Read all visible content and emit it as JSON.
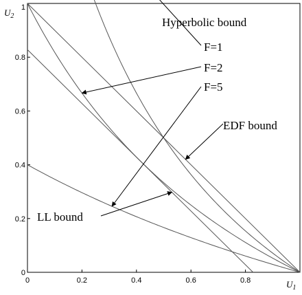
{
  "chart_data": {
    "type": "line",
    "title": "",
    "xlabel": "U",
    "xlabel_sub": "1",
    "ylabel": "U",
    "ylabel_sub": "2",
    "xlim": [
      0,
      1
    ],
    "ylim": [
      0,
      1
    ],
    "x_ticks": [
      "0",
      "0.2",
      "0.4",
      "0.6",
      "0.8"
    ],
    "y_ticks": [
      "0",
      "0.2",
      "0.4",
      "0.6",
      "0.8",
      "1"
    ],
    "grid": false,
    "series": [
      {
        "name": "EDF bound",
        "kind": "edf",
        "x": [
          0,
          1
        ],
        "y": [
          1,
          0
        ]
      },
      {
        "name": "F=5",
        "kind": "hyperbolic",
        "F": 5
      },
      {
        "name": "F=2",
        "kind": "hyperbolic",
        "F": 2
      },
      {
        "name": "F=1",
        "kind": "hyperbolic",
        "F": 1
      },
      {
        "name": "LL bound",
        "kind": "ll",
        "x": [
          0,
          0.828
        ],
        "y": [
          0.828,
          0
        ]
      }
    ],
    "annotations": [
      {
        "text": "Hyperbolic bound"
      },
      {
        "text": "F=1",
        "target_series": "F=1",
        "target_x": 0.12
      },
      {
        "text": "F=2",
        "target_series": "F=2",
        "target_x": 0.2
      },
      {
        "text": "F=5",
        "target_series": "F=5",
        "target_x": 0.31
      },
      {
        "text": "EDF bound",
        "target_series": "EDF bound",
        "target_x": 0.58
      },
      {
        "text": "LL bound",
        "target_series": "LL bound",
        "target_x": 0.53
      }
    ]
  }
}
